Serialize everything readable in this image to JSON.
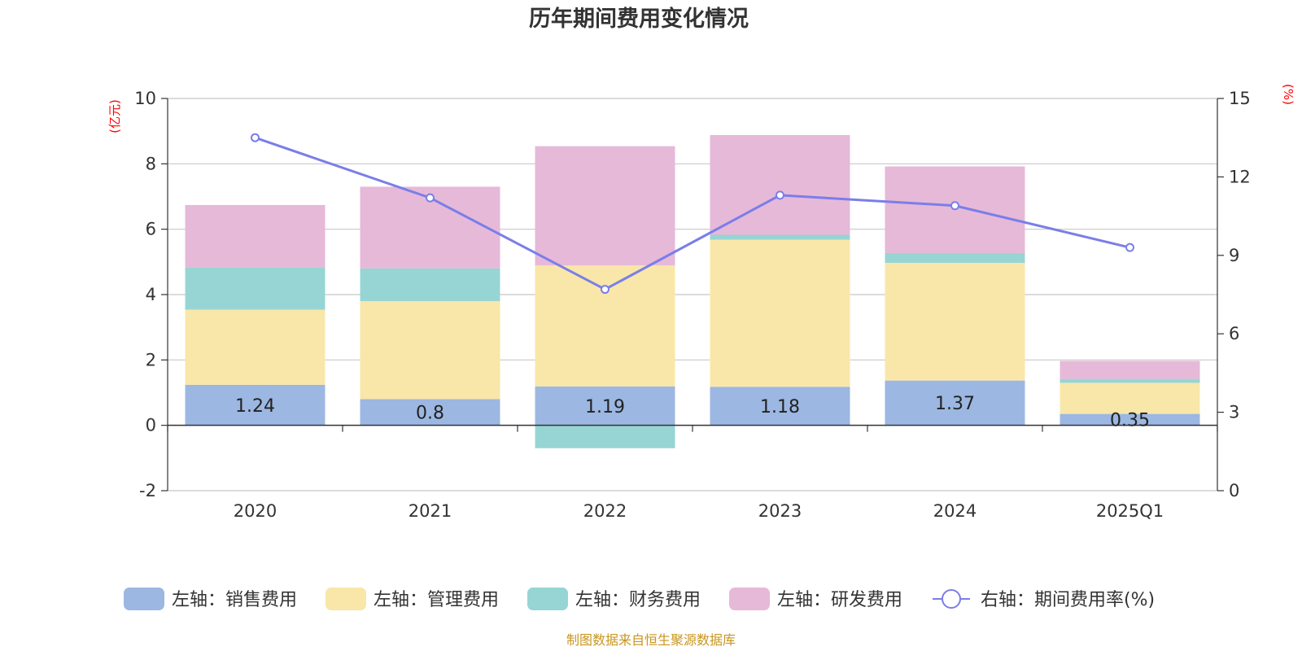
{
  "title": "历年期间费用变化情况",
  "source": "制图数据来自恒生聚源数据库",
  "chart_data": {
    "type": "bar",
    "stacked": true,
    "categories": [
      "2020",
      "2021",
      "2022",
      "2023",
      "2024",
      "2025Q1"
    ],
    "left_axis": {
      "unit": "(亿元)",
      "range": [
        -2,
        10
      ],
      "ticks": [
        -2,
        0,
        2,
        4,
        6,
        8,
        10
      ]
    },
    "right_axis": {
      "unit": "(%)",
      "range": [
        0,
        15
      ],
      "ticks": [
        0,
        3,
        6,
        9,
        12,
        15
      ]
    },
    "grid": true,
    "legend_position": "bottom",
    "series": [
      {
        "name": "左轴：销售费用",
        "color": "#9cb7e2",
        "axis": "left",
        "values": [
          1.24,
          0.8,
          1.19,
          1.18,
          1.37,
          0.35
        ],
        "labels": [
          "1.24",
          "0.8",
          "1.19",
          "1.18",
          "1.37",
          "0.35"
        ]
      },
      {
        "name": "左轴：管理费用",
        "color": "#f8e7a8",
        "axis": "left",
        "values": [
          2.3,
          3.0,
          3.7,
          4.5,
          3.6,
          0.95
        ]
      },
      {
        "name": "左轴：财务费用",
        "color": "#97d4d4",
        "axis": "left",
        "values": [
          1.3,
          1.0,
          -0.7,
          0.15,
          0.3,
          0.12
        ]
      },
      {
        "name": "左轴：研发费用",
        "color": "#e7b9d9",
        "axis": "left",
        "values": [
          1.9,
          2.5,
          3.65,
          3.05,
          2.65,
          0.55
        ]
      },
      {
        "name": "右轴：期间费用率(%)",
        "color": "#7a7ee8",
        "axis": "right",
        "type": "line",
        "values": [
          13.5,
          11.2,
          7.7,
          11.3,
          10.9,
          9.3
        ]
      }
    ]
  }
}
